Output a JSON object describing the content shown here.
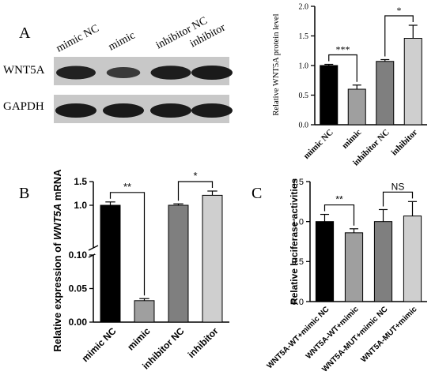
{
  "panels": {
    "a": "A",
    "b": "B",
    "c": "C"
  },
  "colors": {
    "black": "#000000",
    "dark_gray": "#7f7f7f",
    "medium_gray": "#9f9f9f",
    "light_gray": "#cfcfcf",
    "blot_background": "#c8c8c8",
    "blot_band": "#1a1a1a"
  },
  "western_blot": {
    "lane_labels": [
      "mimic NC",
      "mimic",
      "inhibitor NC",
      "inhibitor"
    ],
    "row_labels": [
      "WNT5A",
      "GAPDH"
    ],
    "band_intensity": {
      "WNT5A": [
        0.9,
        0.55,
        0.95,
        1.0
      ],
      "GAPDH": [
        1.0,
        1.0,
        1.0,
        1.0
      ]
    }
  },
  "chart_data": [
    {
      "id": "a_bar",
      "type": "bar",
      "categories": [
        "mimic NC",
        "mimic",
        "inhibitor NC",
        "inhibitor"
      ],
      "values": [
        1.0,
        0.6,
        1.07,
        1.46
      ],
      "errors": [
        0.02,
        0.07,
        0.03,
        0.22
      ],
      "colors": [
        "#000000",
        "#9f9f9f",
        "#7f7f7f",
        "#cfcfcf"
      ],
      "ylabel": "Relative WNT5A protein level",
      "ylim": [
        0,
        2.0
      ],
      "yticks": [
        0.0,
        0.5,
        1.0,
        1.5,
        2.0
      ],
      "ytick_labels": [
        "0.0",
        "0.5",
        "1.0",
        "1.5",
        "2.0"
      ],
      "significance": [
        {
          "from": 0,
          "to": 1,
          "label": "***"
        },
        {
          "from": 2,
          "to": 3,
          "label": "*"
        }
      ]
    },
    {
      "id": "b_bar",
      "type": "bar",
      "categories": [
        "mimic NC",
        "mimic",
        "inhibitor NC",
        "inhibitor"
      ],
      "values": [
        1.0,
        0.032,
        1.0,
        1.21
      ],
      "errors": [
        0.07,
        0.003,
        0.03,
        0.09
      ],
      "colors": [
        "#000000",
        "#9f9f9f",
        "#7f7f7f",
        "#cfcfcf"
      ],
      "ylabel_prefix": "Relative expression of ",
      "ylabel_gene": "WNT5A",
      "ylabel_suffix": " mRNA",
      "broken_axis": {
        "lower": [
          0,
          0.1
        ],
        "upper": [
          0.1,
          1.5
        ]
      },
      "yticks": [
        0.0,
        0.05,
        0.1,
        1.0,
        1.5
      ],
      "ytick_labels": [
        "0.00",
        "0.05",
        "0.10",
        "1.0",
        "1.5"
      ],
      "significance": [
        {
          "from": 0,
          "to": 1,
          "label": "**"
        },
        {
          "from": 2,
          "to": 3,
          "label": "*"
        }
      ]
    },
    {
      "id": "c_bar",
      "type": "bar",
      "categories": [
        "WNT5A-WT+mimic NC",
        "WNT5A-WT+mimic",
        "WNT5A-MUT+mimic NC",
        "WNT5A-MUT+mimic"
      ],
      "values": [
        1.0,
        0.86,
        1.0,
        1.07
      ],
      "errors": [
        0.09,
        0.05,
        0.15,
        0.18
      ],
      "colors": [
        "#000000",
        "#9f9f9f",
        "#7f7f7f",
        "#cfcfcf"
      ],
      "ylabel": "Relative luciferase activities",
      "ylim": [
        0,
        1.5
      ],
      "yticks": [
        0.0,
        0.5,
        1.0,
        1.5
      ],
      "ytick_labels": [
        "0.0",
        "0.5",
        "1.0",
        "1.5"
      ],
      "significance": [
        {
          "from": 0,
          "to": 1,
          "label": "**"
        },
        {
          "from": 2,
          "to": 3,
          "label": "NS"
        }
      ]
    }
  ]
}
